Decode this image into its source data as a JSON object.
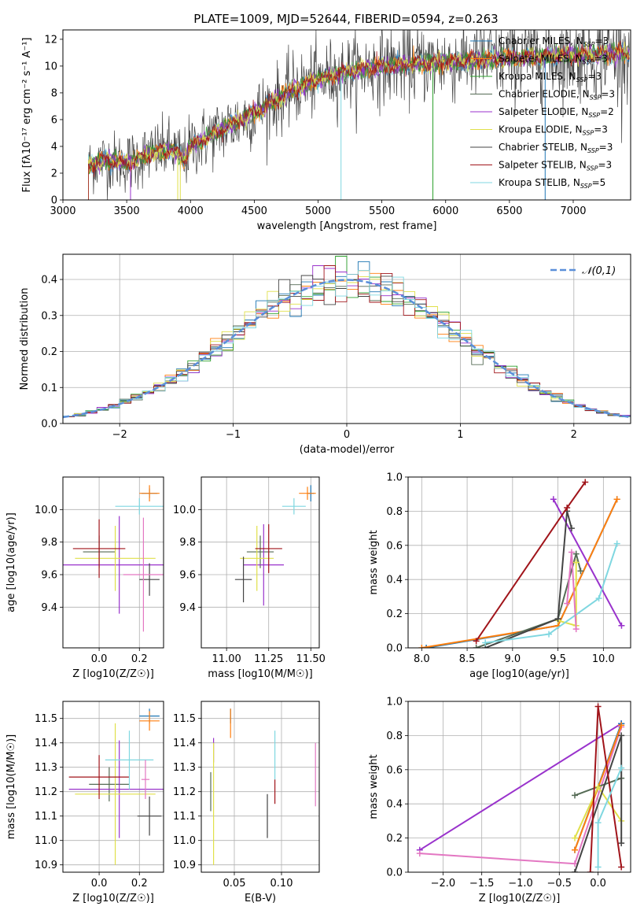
{
  "figure_title": "PLATE=1009, MJD=52644, FIBERID=0594, z=0.263",
  "colors": {
    "series": [
      "#1f77b4",
      "#ff7f0e",
      "#2ca02c",
      "#556b55",
      "#9932cc",
      "#e0e04a",
      "#444444",
      "#a0141a",
      "#7fd7e0"
    ],
    "gaussian": "#5b8fd9",
    "grid": "#b0b0b0",
    "heatmap_extra": "#e377c2"
  },
  "chart_data": [
    {
      "id": "spectrum",
      "type": "line",
      "xlabel": "wavelength [Angstrom, rest frame]",
      "ylabel": "Flux [f_λ10^-17 erg cm^-2 s^-1 A^-1]",
      "xlim": [
        3000,
        7450
      ],
      "ylim": [
        0,
        12.7
      ],
      "xticks": [
        3000,
        3500,
        4000,
        4500,
        5000,
        5500,
        6000,
        6500,
        7000
      ],
      "yticks": [
        0,
        2,
        4,
        6,
        8,
        10,
        12
      ],
      "grid": false,
      "legend_position": "right",
      "legend": [
        "Chabrier MILES, N_SSP=3",
        "Salpeter MILES, N_SSP=3",
        "Kroupa MILES, N_SSP=3",
        "Chabrier ELODIE, N_SSP=3",
        "Salpeter ELODIE, N_SSP=2",
        "Kroupa ELODIE, N_SSP=3",
        "Chabrier STELIB, N_SSP=3",
        "Salpeter STELIB, N_SSP=3",
        "Kroupa STELIB, N_SSP=5"
      ],
      "continuum": {
        "x": [
          3200,
          3300,
          3500,
          3700,
          3850,
          3950,
          4000,
          4200,
          4500,
          4800,
          5000,
          5200,
          5500,
          5800,
          6000,
          6500,
          7000,
          7400
        ],
        "y": [
          2.5,
          3.0,
          2.8,
          3.5,
          3.8,
          3.0,
          4.0,
          5.0,
          6.5,
          8.2,
          9.0,
          9.5,
          10.0,
          10.2,
          10.3,
          10.6,
          10.8,
          11.0
        ]
      }
    },
    {
      "id": "residuals",
      "type": "line",
      "xlabel": "(data-model)/error",
      "ylabel": "Normed distribution",
      "xlim": [
        -2.5,
        2.5
      ],
      "ylim": [
        0,
        0.47
      ],
      "xticks": [
        -2,
        -1,
        0,
        1,
        2
      ],
      "yticks": [
        0.0,
        0.1,
        0.2,
        0.3,
        0.4
      ],
      "grid": true,
      "legend_position": "top-right",
      "legend": [
        "𝒩(0,1)"
      ]
    },
    {
      "id": "age_vs_Z",
      "type": "scatter",
      "xlabel": "Z [log10(Z/Z☉)]",
      "ylabel": "age  [log10(age/yr)]",
      "xlim": [
        -0.18,
        0.32
      ],
      "ylim": [
        9.15,
        10.2
      ],
      "xticks": [
        0.0,
        0.2
      ],
      "yticks": [
        9.4,
        9.6,
        9.8,
        10.0
      ],
      "grid": true,
      "points": [
        {
          "x": 0.25,
          "y": 10.1,
          "xerr": 0.04,
          "yerr": 0.03,
          "c": 0
        },
        {
          "x": 0.25,
          "y": 10.1,
          "xerr": 0.05,
          "yerr": 0.05,
          "c": 1
        },
        {
          "x": 0.0,
          "y": 9.74,
          "xerr": 0.08,
          "yerr": 0.1,
          "c": 3
        },
        {
          "x": 0.1,
          "y": 9.66,
          "xerr": 0.28,
          "yerr": 0.3,
          "c": 4
        },
        {
          "x": 0.08,
          "y": 9.7,
          "xerr": 0.2,
          "yerr": 0.2,
          "c": 5
        },
        {
          "x": 0.25,
          "y": 9.57,
          "xerr": 0.05,
          "yerr": 0.1,
          "c": 6
        },
        {
          "x": 0.0,
          "y": 9.76,
          "xerr": 0.13,
          "yerr": 0.18,
          "c": 7
        },
        {
          "x": 0.2,
          "y": 10.02,
          "xerr": 0.12,
          "yerr": 0.05,
          "c": 8
        },
        {
          "x": 0.22,
          "y": 9.6,
          "xerr": 0.1,
          "yerr": 0.35,
          "c": 2
        }
      ]
    },
    {
      "id": "age_vs_mass",
      "type": "scatter",
      "xlabel": "mass [log10(M/M☉)]",
      "ylabel": "",
      "xlim": [
        10.85,
        11.55
      ],
      "ylim": [
        9.15,
        10.2
      ],
      "xticks": [
        11.0,
        11.25,
        11.5
      ],
      "yticks": [
        9.4,
        9.6,
        9.8,
        10.0
      ],
      "grid": true,
      "points": [
        {
          "x": 11.5,
          "y": 10.1,
          "xerr": 0.02,
          "yerr": 0.05,
          "c": 0
        },
        {
          "x": 11.48,
          "y": 10.1,
          "xerr": 0.05,
          "yerr": 0.04,
          "c": 1
        },
        {
          "x": 11.2,
          "y": 9.74,
          "xerr": 0.08,
          "yerr": 0.1,
          "c": 3
        },
        {
          "x": 11.22,
          "y": 9.66,
          "xerr": 0.12,
          "yerr": 0.25,
          "c": 4
        },
        {
          "x": 11.18,
          "y": 9.7,
          "xerr": 0.1,
          "yerr": 0.2,
          "c": 5
        },
        {
          "x": 11.1,
          "y": 9.57,
          "xerr": 0.05,
          "yerr": 0.14,
          "c": 6
        },
        {
          "x": 11.25,
          "y": 9.76,
          "xerr": 0.08,
          "yerr": 0.15,
          "c": 7
        },
        {
          "x": 11.4,
          "y": 10.02,
          "xerr": 0.07,
          "yerr": 0.05,
          "c": 8
        }
      ]
    },
    {
      "id": "mass_weight_vs_age",
      "type": "line",
      "xlabel": "age  [log10(age/yr)]",
      "ylabel": "mass weight",
      "xlim": [
        7.85,
        10.3
      ],
      "ylim": [
        0,
        1.0
      ],
      "xticks": [
        8.0,
        8.5,
        9.0,
        9.5,
        10.0
      ],
      "yticks": [
        0.0,
        0.2,
        0.4,
        0.6,
        0.8,
        1.0
      ],
      "grid": true,
      "series": [
        {
          "c": 0,
          "x": [
            8.05,
            9.5,
            10.15
          ],
          "y": [
            0.0,
            0.13,
            0.87
          ]
        },
        {
          "c": 1,
          "x": [
            8.0,
            9.5,
            10.15
          ],
          "y": [
            0.0,
            0.13,
            0.87
          ]
        },
        {
          "c": 3,
          "x": [
            8.6,
            9.5,
            9.7,
            9.75
          ],
          "y": [
            0.0,
            0.17,
            0.55,
            0.45
          ]
        },
        {
          "c": 4,
          "x": [
            9.45,
            10.2
          ],
          "y": [
            0.87,
            0.13
          ]
        },
        {
          "c": 5,
          "x": [
            9.5,
            9.7,
            9.7
          ],
          "y": [
            0.16,
            0.13,
            0.5
          ]
        },
        {
          "c": 6,
          "x": [
            8.7,
            9.5,
            9.6,
            9.65
          ],
          "y": [
            0.0,
            0.17,
            0.8,
            0.7
          ]
        },
        {
          "c": 7,
          "x": [
            8.6,
            9.6,
            9.8
          ],
          "y": [
            0.04,
            0.82,
            0.97
          ]
        },
        {
          "c": 8,
          "x": [
            8.7,
            9.4,
            9.95,
            10.15
          ],
          "y": [
            0.03,
            0.08,
            0.29,
            0.61
          ]
        },
        {
          "c": 2,
          "x": [
            9.6,
            9.65,
            9.7
          ],
          "y": [
            0.26,
            0.56,
            0.11
          ]
        }
      ]
    },
    {
      "id": "mass_vs_Z",
      "type": "scatter",
      "xlabel": "Z [log10(Z/Z☉)]",
      "ylabel": "mass [log10(M/M☉)]",
      "xlim": [
        -0.18,
        0.32
      ],
      "ylim": [
        10.87,
        11.57
      ],
      "xticks": [
        0.0,
        0.2
      ],
      "yticks": [
        10.9,
        11.0,
        11.1,
        11.2,
        11.3,
        11.4,
        11.5
      ],
      "grid": true,
      "points": [
        {
          "x": 0.25,
          "y": 11.51,
          "xerr": 0.05,
          "yerr": 0.03,
          "c": 0
        },
        {
          "x": 0.25,
          "y": 11.49,
          "xerr": 0.05,
          "yerr": 0.04,
          "c": 1
        },
        {
          "x": 0.05,
          "y": 11.23,
          "xerr": 0.1,
          "yerr": 0.07,
          "c": 3
        },
        {
          "x": 0.1,
          "y": 11.21,
          "xerr": 0.25,
          "yerr": 0.2,
          "c": 4
        },
        {
          "x": 0.08,
          "y": 11.19,
          "xerr": 0.2,
          "yerr": 0.29,
          "c": 5
        },
        {
          "x": 0.25,
          "y": 11.1,
          "xerr": 0.06,
          "yerr": 0.08,
          "c": 6
        },
        {
          "x": 0.0,
          "y": 11.26,
          "xerr": 0.15,
          "yerr": 0.09,
          "c": 7
        },
        {
          "x": 0.15,
          "y": 11.33,
          "xerr": 0.12,
          "yerr": 0.12,
          "c": 8
        },
        {
          "x": 0.23,
          "y": 11.25,
          "xerr": 0.02,
          "yerr": 0.08,
          "c": 2
        }
      ]
    },
    {
      "id": "mass_vs_EBV",
      "type": "scatter",
      "xlabel": "E(B-V)",
      "ylabel": "",
      "xlim": [
        0.015,
        0.14
      ],
      "ylim": [
        10.87,
        11.57
      ],
      "xticks": [
        0.05,
        0.1
      ],
      "yticks": [
        10.9,
        11.0,
        11.1,
        11.2,
        11.3,
        11.4,
        11.5
      ],
      "grid": true,
      "points": [
        {
          "x": 0.046,
          "y": 11.51,
          "yerr": 0.03,
          "c": 0
        },
        {
          "x": 0.046,
          "y": 11.48,
          "yerr": 0.06,
          "c": 1
        },
        {
          "x": 0.025,
          "y": 11.2,
          "yerr": 0.08,
          "c": 3
        },
        {
          "x": 0.028,
          "y": 11.37,
          "yerr": 0.05,
          "c": 4
        },
        {
          "x": 0.028,
          "y": 11.15,
          "yerr": 0.25,
          "c": 5
        },
        {
          "x": 0.085,
          "y": 11.1,
          "yerr": 0.09,
          "c": 6
        },
        {
          "x": 0.093,
          "y": 11.2,
          "yerr": 0.05,
          "c": 7
        },
        {
          "x": 0.093,
          "y": 11.35,
          "yerr": 0.1,
          "c": 8
        },
        {
          "x": 0.136,
          "y": 11.27,
          "yerr": 0.13,
          "c": 2
        }
      ]
    },
    {
      "id": "mass_weight_vs_Z",
      "type": "line",
      "xlabel": "Z [log10(Z/Z☉)]",
      "ylabel": "mass weight",
      "xlim": [
        -2.45,
        0.42
      ],
      "ylim": [
        0,
        1.0
      ],
      "xticks": [
        -2.0,
        -1.5,
        -1.0,
        -0.5,
        0.0
      ],
      "yticks": [
        0.0,
        0.2,
        0.4,
        0.6,
        0.8,
        1.0
      ],
      "grid": true,
      "series": [
        {
          "c": 4,
          "x": [
            -2.3,
            0.3,
            0.3
          ],
          "y": [
            0.13,
            0.87,
            0.87
          ]
        },
        {
          "c": 2,
          "x": [
            -2.3,
            -0.3,
            0.3
          ],
          "y": [
            0.11,
            0.05,
            0.85
          ]
        },
        {
          "c": 0,
          "x": [
            -0.3,
            0.3
          ],
          "y": [
            0.13,
            0.87
          ]
        },
        {
          "c": 1,
          "x": [
            -0.3,
            0.3
          ],
          "y": [
            0.13,
            0.86
          ]
        },
        {
          "c": 3,
          "x": [
            -0.3,
            0.3
          ],
          "y": [
            0.45,
            0.55
          ]
        },
        {
          "c": 5,
          "x": [
            -0.3,
            0.0,
            0.3
          ],
          "y": [
            0.2,
            0.5,
            0.3
          ]
        },
        {
          "c": 6,
          "x": [
            -0.3,
            0.3,
            0.3
          ],
          "y": [
            0.0,
            0.8,
            0.17
          ]
        },
        {
          "c": 7,
          "x": [
            -0.1,
            0.0,
            0.3
          ],
          "y": [
            0.0,
            0.97,
            0.03
          ]
        },
        {
          "c": 8,
          "x": [
            0.0,
            0.0,
            0.3
          ],
          "y": [
            0.03,
            0.29,
            0.61
          ]
        }
      ]
    }
  ]
}
